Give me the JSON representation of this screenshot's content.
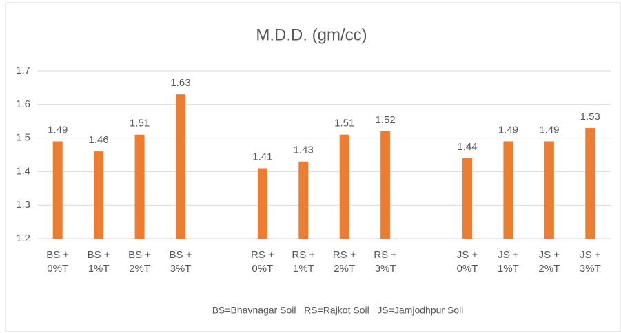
{
  "chart_data": {
    "type": "bar",
    "title": "M.D.D. (gm/cc)",
    "categories": [
      "BS + 0%T",
      "BS + 1%T",
      "BS + 2%T",
      "BS + 3%T",
      null,
      "RS + 0%T",
      "RS + 1%T",
      "RS + 2%T",
      "RS + 3%T",
      null,
      "JS + 0%T",
      "JS + 1%T",
      "JS + 2%T",
      "JS + 3%T"
    ],
    "values": [
      1.49,
      1.46,
      1.51,
      1.63,
      null,
      1.41,
      1.43,
      1.51,
      1.52,
      null,
      1.44,
      1.49,
      1.49,
      1.53
    ],
    "color": "#ed7d31",
    "ylim": [
      1.2,
      1.7
    ],
    "yticks": [
      1.2,
      1.3,
      1.4,
      1.5,
      1.6,
      1.7
    ],
    "grid": true,
    "annotation": "BS=Bhavnagar Soil   RS=Rajkot Soil   JS=Jamjodhpur Soil"
  }
}
